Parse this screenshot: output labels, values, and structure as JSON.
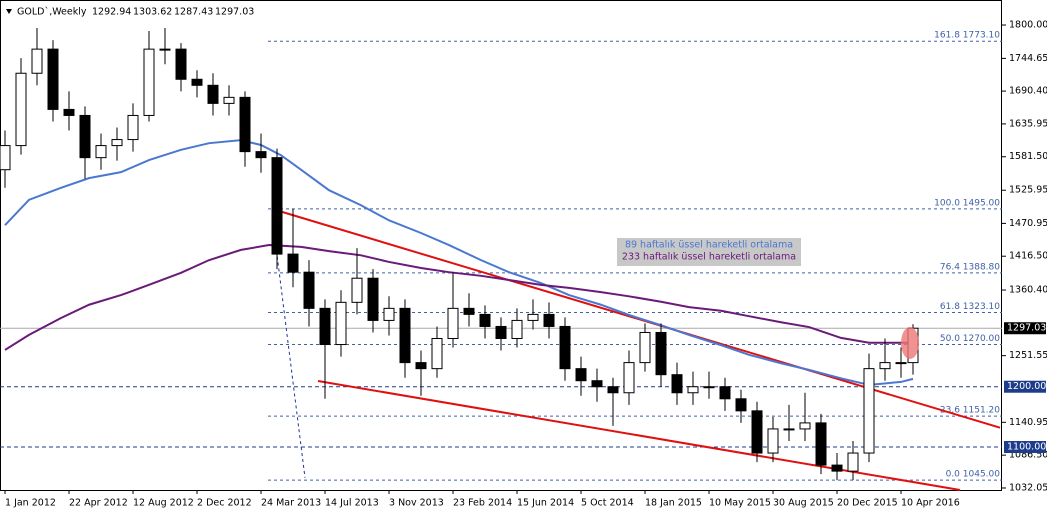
{
  "chart_data": {
    "type": "candlestick",
    "title": "GOLD`,Weekly",
    "header_ohlc": [
      1292.94,
      1303.62,
      1287.43,
      1297.03
    ],
    "xlim": [
      -1.25,
      249.25
    ],
    "ylim": [
      1028.7,
      1841.5
    ],
    "xticks": [
      {
        "value": 0,
        "label": "1 Jan 2012"
      },
      {
        "value": 16,
        "label": "22 Apr 2012"
      },
      {
        "value": 32,
        "label": "12 Aug 2012"
      },
      {
        "value": 48,
        "label": "2 Dec 2012"
      },
      {
        "value": 64,
        "label": "24 Mar 2013"
      },
      {
        "value": 80,
        "label": "14 Jul 2013"
      },
      {
        "value": 96,
        "label": "3 Nov 2013"
      },
      {
        "value": 112,
        "label": "23 Feb 2014"
      },
      {
        "value": 128,
        "label": "15 Jun 2014"
      },
      {
        "value": 144,
        "label": "5 Oct 2014"
      },
      {
        "value": 160,
        "label": "18 Jan 2015"
      },
      {
        "value": 176,
        "label": "10 May 2015"
      },
      {
        "value": 192,
        "label": "30 Aug 2015"
      },
      {
        "value": 208,
        "label": "20 Dec 2015"
      },
      {
        "value": 224,
        "label": "10 Apr 2016"
      }
    ],
    "yticks": [
      {
        "value": 1800,
        "label": "1800.00"
      },
      {
        "value": 1744.65,
        "label": "1744.65"
      },
      {
        "value": 1690.4,
        "label": "1690.40"
      },
      {
        "value": 1635.95,
        "label": "1635.95"
      },
      {
        "value": 1581.5,
        "label": "1581.50"
      },
      {
        "value": 1525.95,
        "label": "1525.95"
      },
      {
        "value": 1470.95,
        "label": "1470.95"
      },
      {
        "value": 1416.5,
        "label": "1416.50"
      },
      {
        "value": 1360.4,
        "label": "1360.40"
      },
      {
        "value": 1251.55,
        "label": "1251.55"
      },
      {
        "value": 1140.95,
        "label": "1140.95"
      },
      {
        "value": 1086.5,
        "label": "1086.50"
      },
      {
        "value": 1032.05,
        "label": "1032.05"
      }
    ],
    "x": [
      0,
      4,
      8,
      12,
      16,
      20,
      24,
      28,
      32,
      36,
      40,
      44,
      48,
      52,
      56,
      60,
      64,
      68,
      72,
      76,
      80,
      84,
      88,
      92,
      96,
      100,
      104,
      108,
      112,
      116,
      120,
      124,
      128,
      132,
      136,
      140,
      144,
      148,
      152,
      156,
      160,
      164,
      168,
      172,
      176,
      180,
      184,
      188,
      192,
      196,
      200,
      204,
      208,
      212,
      216,
      220,
      224,
      227
    ],
    "ohlc": [
      [
        1560,
        1625,
        1530,
        1600
      ],
      [
        1600,
        1745,
        1585,
        1720
      ],
      [
        1720,
        1795,
        1700,
        1760
      ],
      [
        1760,
        1775,
        1640,
        1660
      ],
      [
        1660,
        1690,
        1625,
        1650
      ],
      [
        1650,
        1665,
        1545,
        1580
      ],
      [
        1580,
        1620,
        1560,
        1600
      ],
      [
        1600,
        1630,
        1575,
        1610
      ],
      [
        1610,
        1670,
        1590,
        1650
      ],
      [
        1650,
        1790,
        1640,
        1760
      ],
      [
        1760,
        1795,
        1735,
        1760
      ],
      [
        1760,
        1770,
        1690,
        1710
      ],
      [
        1710,
        1725,
        1680,
        1700
      ],
      [
        1700,
        1720,
        1650,
        1670
      ],
      [
        1670,
        1700,
        1650,
        1680
      ],
      [
        1680,
        1690,
        1565,
        1590
      ],
      [
        1590,
        1620,
        1555,
        1580
      ],
      [
        1580,
        1595,
        1395,
        1420
      ],
      [
        1420,
        1495,
        1365,
        1390
      ],
      [
        1390,
        1410,
        1300,
        1330
      ],
      [
        1330,
        1345,
        1180,
        1270
      ],
      [
        1270,
        1360,
        1250,
        1340
      ],
      [
        1340,
        1430,
        1320,
        1380
      ],
      [
        1380,
        1395,
        1290,
        1310
      ],
      [
        1310,
        1350,
        1285,
        1330
      ],
      [
        1330,
        1345,
        1215,
        1240
      ],
      [
        1240,
        1260,
        1185,
        1230
      ],
      [
        1230,
        1300,
        1215,
        1280
      ],
      [
        1280,
        1390,
        1265,
        1330
      ],
      [
        1330,
        1355,
        1300,
        1320
      ],
      [
        1320,
        1335,
        1280,
        1300
      ],
      [
        1300,
        1315,
        1260,
        1280
      ],
      [
        1280,
        1330,
        1265,
        1310
      ],
      [
        1310,
        1345,
        1295,
        1320
      ],
      [
        1320,
        1340,
        1280,
        1300
      ],
      [
        1300,
        1315,
        1210,
        1230
      ],
      [
        1230,
        1250,
        1185,
        1210
      ],
      [
        1210,
        1230,
        1175,
        1200
      ],
      [
        1200,
        1215,
        1135,
        1190
      ],
      [
        1190,
        1260,
        1170,
        1240
      ],
      [
        1240,
        1305,
        1225,
        1290
      ],
      [
        1290,
        1305,
        1200,
        1220
      ],
      [
        1220,
        1240,
        1170,
        1190
      ],
      [
        1190,
        1225,
        1170,
        1200
      ],
      [
        1200,
        1225,
        1180,
        1200
      ],
      [
        1200,
        1215,
        1160,
        1180
      ],
      [
        1180,
        1195,
        1140,
        1160
      ],
      [
        1160,
        1175,
        1075,
        1090
      ],
      [
        1090,
        1150,
        1075,
        1130
      ],
      [
        1130,
        1170,
        1110,
        1130
      ],
      [
        1130,
        1190,
        1110,
        1140
      ],
      [
        1140,
        1155,
        1055,
        1070
      ],
      [
        1070,
        1090,
        1045,
        1060
      ],
      [
        1060,
        1110,
        1045,
        1090
      ],
      [
        1090,
        1255,
        1075,
        1230
      ],
      [
        1230,
        1280,
        1210,
        1240
      ],
      [
        1240,
        1265,
        1215,
        1240
      ],
      [
        1240,
        1303.62,
        1220,
        1297.03
      ]
    ],
    "series": [
      {
        "name": "89 haftalık üssel hareketli ortalama",
        "color": "#4a78d0",
        "x": [
          0,
          6,
          14,
          21,
          29,
          36,
          44,
          51,
          59,
          64,
          69,
          74,
          81,
          89,
          96,
          104,
          111,
          119,
          126,
          134,
          141,
          149,
          156,
          164,
          171,
          179,
          186,
          194,
          201,
          209,
          216,
          224,
          227
        ],
        "values": [
          1468,
          1510,
          1530,
          1546,
          1556,
          1576,
          1593,
          1604,
          1609,
          1601,
          1584,
          1560,
          1526,
          1501,
          1476,
          1455,
          1435,
          1410,
          1390,
          1372,
          1352,
          1336,
          1319,
          1302,
          1286,
          1269,
          1253,
          1239,
          1228,
          1214,
          1203,
          1208,
          1213
        ]
      },
      {
        "name": "233 haftalık üssel hareketli ortalama",
        "color": "#6a1a78",
        "x": [
          0,
          6,
          14,
          21,
          29,
          36,
          44,
          51,
          59,
          66,
          74,
          81,
          89,
          96,
          104,
          111,
          119,
          126,
          134,
          141,
          149,
          156,
          164,
          171,
          179,
          186,
          194,
          201,
          209,
          216,
          224,
          227
        ],
        "values": [
          1261,
          1286,
          1314,
          1336,
          1352,
          1369,
          1389,
          1410,
          1427,
          1435,
          1432,
          1425,
          1418,
          1407,
          1397,
          1390,
          1384,
          1377,
          1369,
          1364,
          1357,
          1350,
          1341,
          1332,
          1326,
          1317,
          1307,
          1299,
          1281,
          1273,
          1273,
          1273
        ]
      }
    ],
    "trendlines": [
      {
        "color": "#e01010",
        "x": [
          66.75,
          248.75
        ],
        "y": [
          1495,
          1132
        ]
      },
      {
        "color": "#e01010",
        "x": [
          78.25,
          238.75
        ],
        "y": [
          1209.5,
          1028.7
        ]
      }
    ],
    "projection": {
      "color": "#2030a0",
      "x": [
        66.75,
        75
      ],
      "y": [
        1485,
        1049
      ]
    },
    "fib_start_x": 65.75,
    "fib_levels": [
      {
        "value": 1773.1,
        "label": "161.8 1773.10"
      },
      {
        "value": 1495,
        "label": "100.0 1495.00"
      },
      {
        "value": 1388.8,
        "label": "76.4 1388.80"
      },
      {
        "value": 1323.1,
        "label": "61.8 1323.10"
      },
      {
        "value": 1270,
        "label": "50.0 1270.00"
      },
      {
        "value": 1151.2,
        "label": "23.6 1151.20"
      },
      {
        "value": 1045,
        "label": "0.0 1045.00"
      }
    ],
    "hlines": [
      {
        "value": 1200,
        "label": "1200.00"
      },
      {
        "value": 1100,
        "label": "1100.00"
      }
    ],
    "current_price": 1297.03
  }
}
